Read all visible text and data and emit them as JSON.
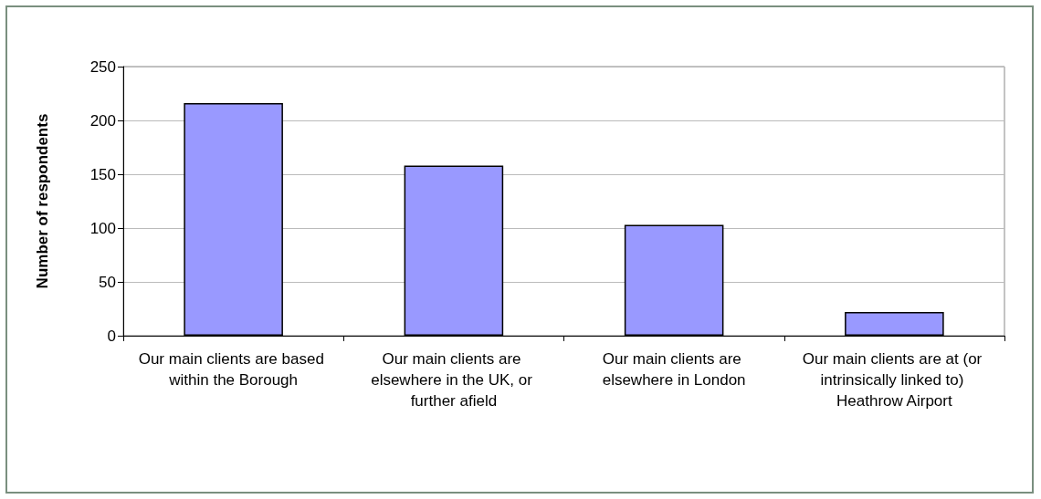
{
  "chart_data": {
    "type": "bar",
    "ylabel": "Number of respondents",
    "categories": [
      "Our main clients are based within the Borough",
      "Our main clients are elsewhere in the UK, or further afield",
      "Our main clients are elsewhere in London",
      "Our main clients are at (or intrinsically linked to) Heathrow Airport"
    ],
    "values": [
      216,
      158,
      103,
      22
    ],
    "color": "#9999ff",
    "ylim": [
      0,
      250
    ],
    "yticks": [
      0,
      50,
      100,
      150,
      200,
      250
    ],
    "grid": "y"
  }
}
